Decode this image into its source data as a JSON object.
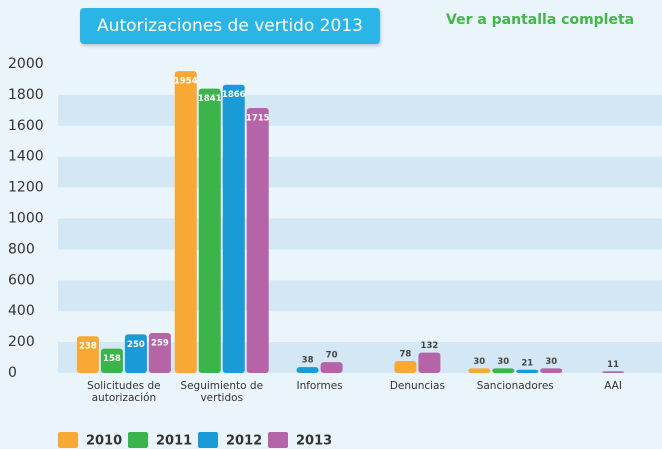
{
  "title": "Autorizaciones de vertido 2013",
  "link": "Ver a pantalla completa",
  "chart_data": {
    "type": "bar",
    "categories": [
      "Solicitudes de autorización",
      "Seguimiento de vertidos",
      "Informes",
      "Denuncias",
      "Sancionadores",
      "AAI"
    ],
    "series": [
      {
        "name": "2010",
        "color": "#f7a835",
        "values": [
          238,
          1954,
          null,
          78,
          30,
          null
        ]
      },
      {
        "name": "2011",
        "color": "#3bb54a",
        "values": [
          158,
          1841,
          null,
          null,
          30,
          null
        ]
      },
      {
        "name": "2012",
        "color": "#1a9ad6",
        "values": [
          250,
          1866,
          38,
          null,
          21,
          null
        ]
      },
      {
        "name": "2013",
        "color": "#b565a7",
        "values": [
          259,
          1715,
          70,
          132,
          30,
          11
        ]
      }
    ],
    "ylim": [
      0,
      2000
    ],
    "yticks": [
      0,
      200,
      400,
      600,
      800,
      1000,
      1200,
      1400,
      1600,
      1800,
      2000
    ],
    "grid": true,
    "legend": "bottom"
  }
}
